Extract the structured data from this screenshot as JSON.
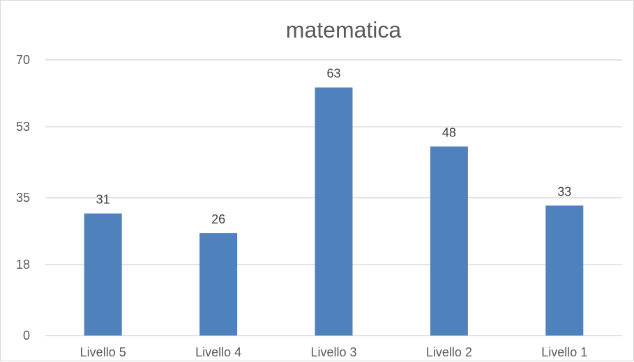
{
  "chart_data": {
    "type": "bar",
    "title": "matematica",
    "xlabel": "",
    "ylabel": "",
    "categories": [
      "Livello 5",
      "Livello 4",
      "Livello 3",
      "Livello 2",
      "Livello 1"
    ],
    "series": [
      {
        "values": [
          31,
          26,
          63,
          48,
          33
        ],
        "color": "#4f81bd"
      }
    ],
    "data_labels": [
      "31",
      "26",
      "63",
      "48",
      "33"
    ],
    "y_ticks": [
      0,
      18,
      35,
      53,
      70
    ],
    "y_tick_labels": [
      "0",
      "18",
      "35",
      "53",
      "70"
    ],
    "ylim": [
      0,
      70
    ],
    "grid": true,
    "legend": "none",
    "gridline_color": "#d9d9d9"
  }
}
